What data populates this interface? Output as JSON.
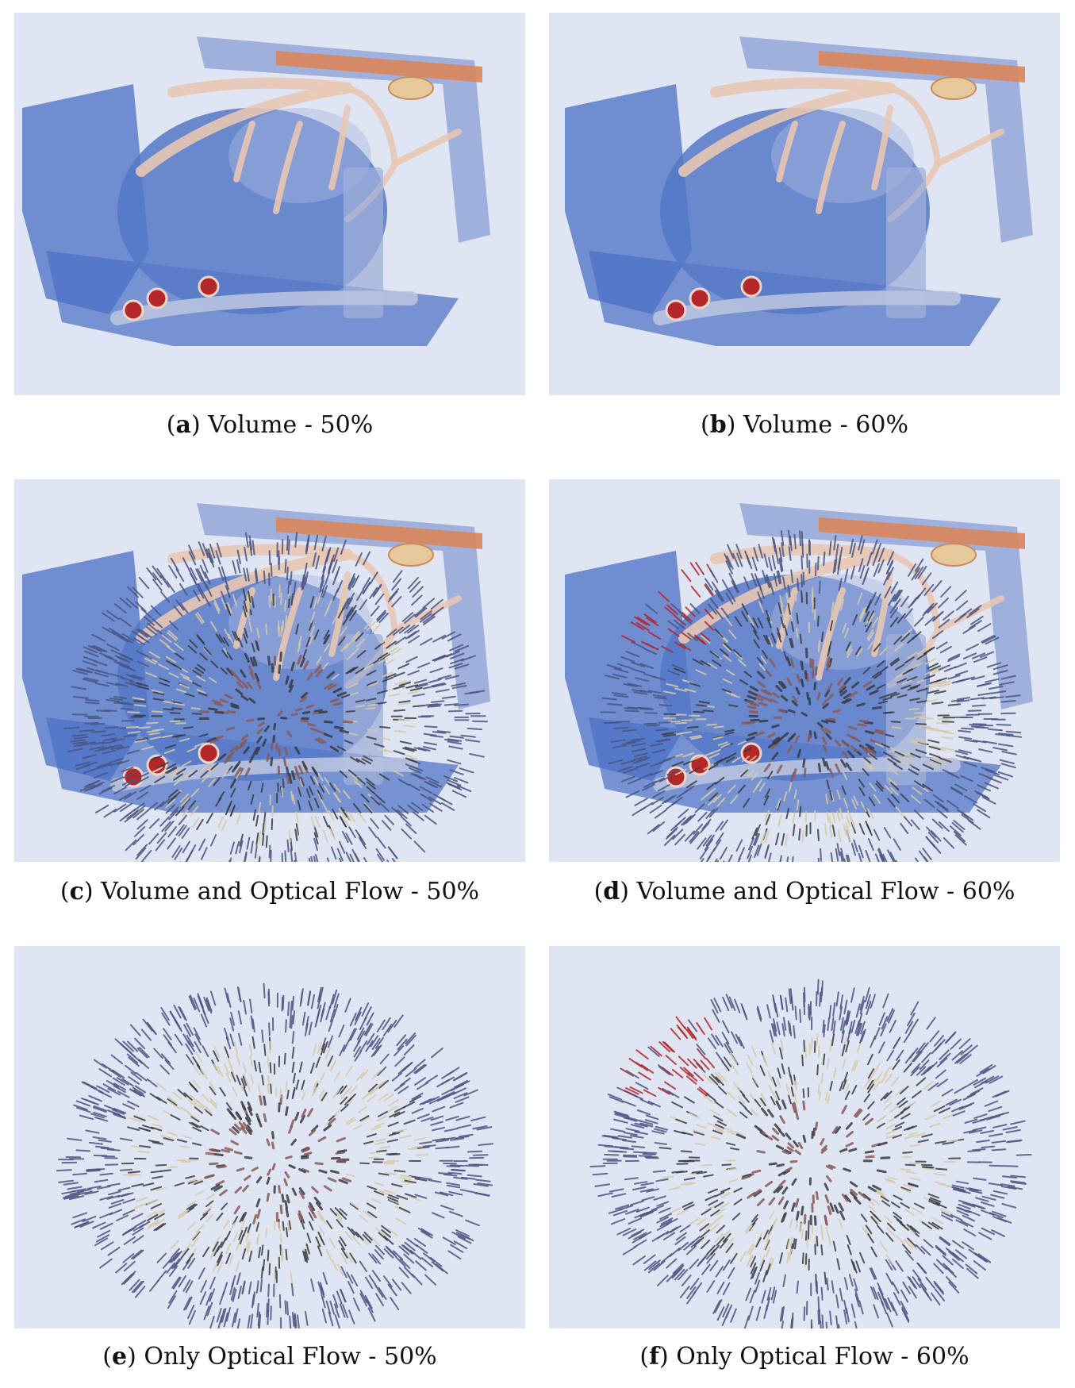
{
  "figure": {
    "panels": [
      {
        "letter": "a",
        "label": "Volume - 50%",
        "show_volume": true,
        "show_flow": false,
        "red_tips": false
      },
      {
        "letter": "b",
        "label": "Volume - 60%",
        "show_volume": true,
        "show_flow": false,
        "red_tips": false
      },
      {
        "letter": "c",
        "label": "Volume and Optical Flow - 50%",
        "show_volume": true,
        "show_flow": true,
        "red_tips": false
      },
      {
        "letter": "d",
        "label": "Volume and Optical Flow - 60%",
        "show_volume": true,
        "show_flow": true,
        "red_tips": true
      },
      {
        "letter": "e",
        "label": "Only Optical Flow - 50%",
        "show_volume": false,
        "show_flow": true,
        "red_tips": false
      },
      {
        "letter": "f",
        "label": "Only Optical Flow - 60%",
        "show_volume": false,
        "show_flow": true,
        "red_tips": true
      }
    ],
    "colors": {
      "background": "#dfe5f2",
      "tissue_blue": "#4a6fc4",
      "vessel_cream": "#e8c7b2",
      "muscle_orange": "#d9855a",
      "blood_red": "#b3262a",
      "arrow_navy": "#4a5584",
      "arrow_cream": "#d8c9a8",
      "arrow_dark": "#3a3a44"
    }
  }
}
